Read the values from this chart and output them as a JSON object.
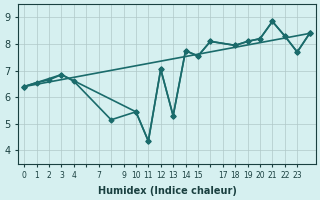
{
  "xlabel": "Humidex (Indice chaleur)",
  "bg_color": "#d6f0f0",
  "line_color": "#1a6b6b",
  "xlim": [
    -0.5,
    23.5
  ],
  "ylim": [
    3.5,
    9.5
  ],
  "yticks": [
    4,
    5,
    6,
    7,
    8,
    9
  ],
  "xtick_labels": [
    "0",
    "1",
    "2",
    "3",
    "4",
    "",
    "7",
    "",
    "9",
    "10",
    "11",
    "12",
    "13",
    "14",
    "15",
    "",
    "17",
    "18",
    "19",
    "20",
    "21",
    "22",
    "23"
  ],
  "xtick_positions": [
    0,
    1,
    2,
    3,
    4,
    5,
    6,
    7,
    8,
    9,
    10,
    11,
    12,
    13,
    14,
    15,
    16,
    17,
    18,
    19,
    20,
    21,
    22
  ],
  "lines": [
    {
      "x": [
        0,
        1,
        2,
        3,
        4,
        7,
        9,
        10,
        11,
        12,
        13,
        14,
        15,
        17,
        18,
        19,
        20,
        21,
        22,
        23
      ],
      "y": [
        6.4,
        6.55,
        6.65,
        6.85,
        6.6,
        5.15,
        5.45,
        4.35,
        7.05,
        5.3,
        7.75,
        7.55,
        8.1,
        7.95,
        8.1,
        8.2,
        8.85,
        8.3,
        7.7,
        8.4
      ]
    },
    {
      "x": [
        0,
        3,
        9,
        10,
        11,
        12,
        13,
        14,
        15,
        17,
        18,
        19,
        20,
        21,
        22,
        23
      ],
      "y": [
        6.4,
        6.85,
        5.45,
        4.35,
        7.05,
        5.3,
        7.75,
        7.55,
        8.1,
        7.95,
        8.1,
        8.2,
        8.85,
        8.3,
        7.7,
        8.4
      ]
    },
    {
      "x": [
        0,
        23
      ],
      "y": [
        6.4,
        8.4
      ]
    }
  ]
}
